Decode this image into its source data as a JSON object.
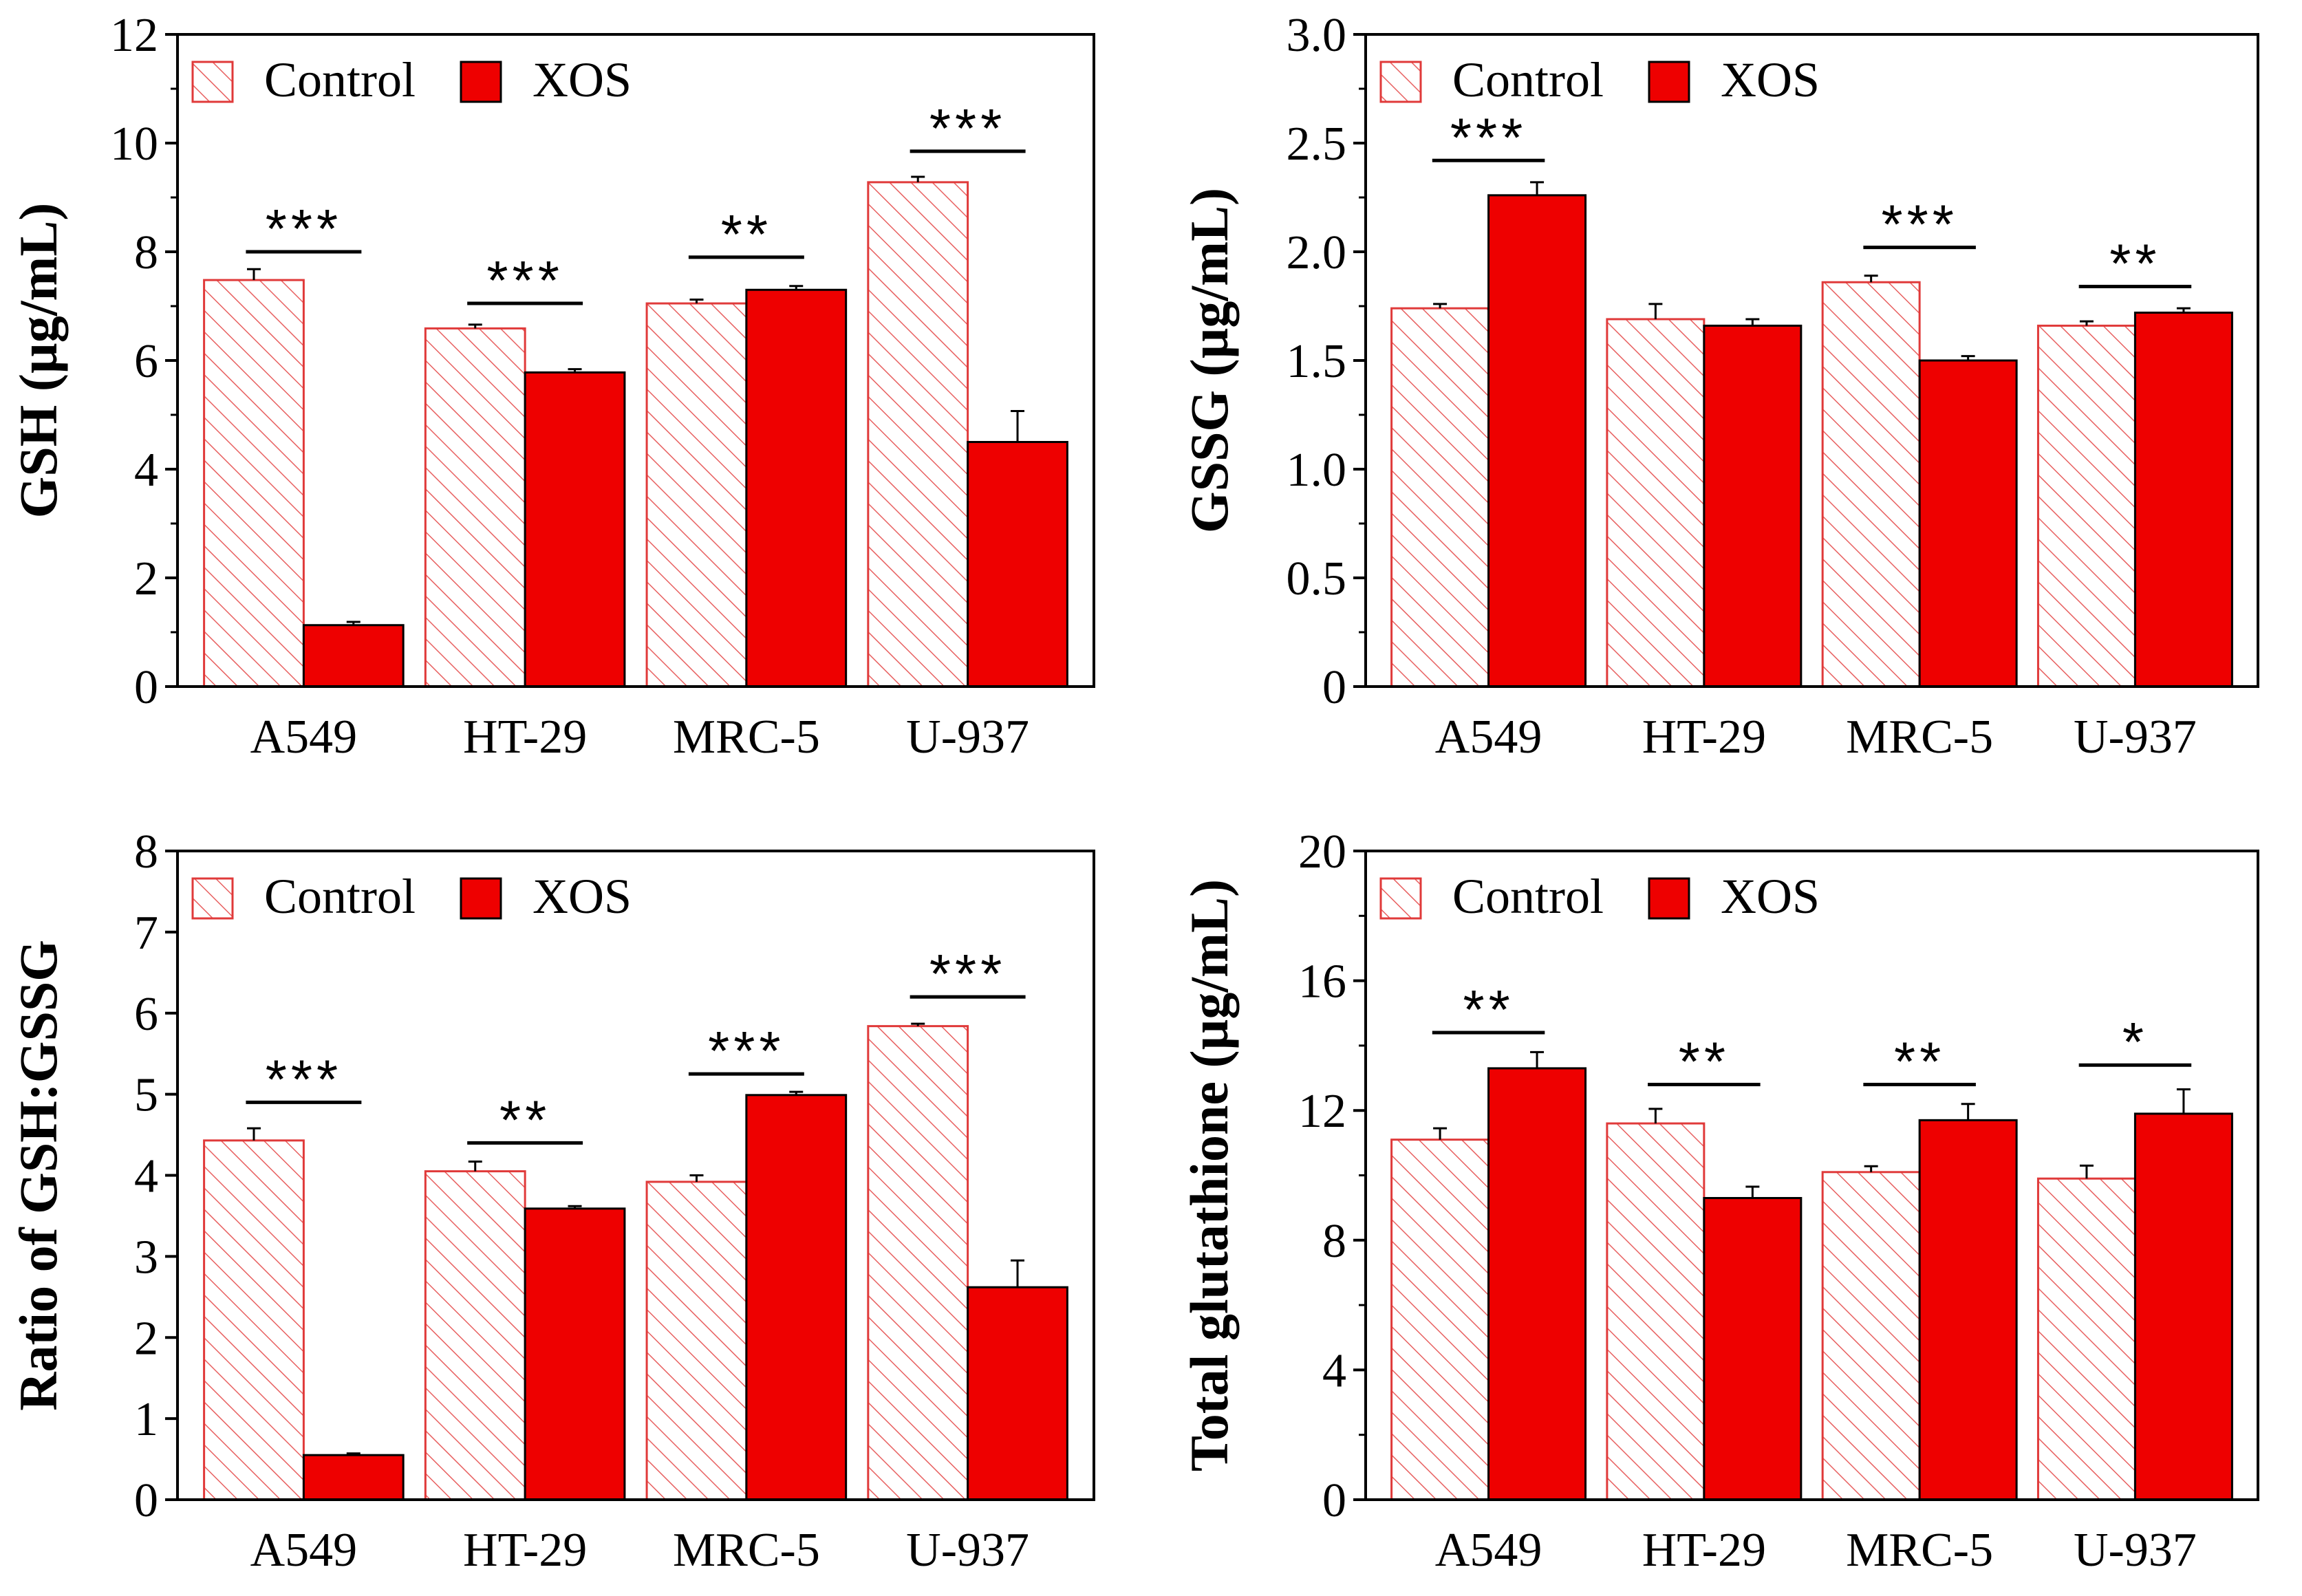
{
  "colors": {
    "control_stroke": "#e03a3a",
    "control_hatch": "#e86060",
    "control_fill": "#ffffff",
    "xos_fill": "#ee0000",
    "frame": "#000000"
  },
  "chart_data": [
    {
      "type": "bar",
      "ylabel": "GSH (µg/mL)",
      "categories": [
        "A549",
        "HT-29",
        "MRC-5",
        "U-937"
      ],
      "ylim": [
        0,
        12
      ],
      "yticks": [
        0,
        2,
        4,
        6,
        8,
        10,
        12
      ],
      "yminor": 1,
      "legend": {
        "position": "top-left",
        "entries": [
          "Control",
          "XOS"
        ]
      },
      "series": [
        {
          "name": "Control",
          "values": [
            7.48,
            6.59,
            7.05,
            9.28
          ],
          "errors": [
            0.2,
            0.07,
            0.07,
            0.1
          ]
        },
        {
          "name": "XOS",
          "values": [
            1.13,
            5.78,
            7.3,
            4.5
          ],
          "errors": [
            0.06,
            0.06,
            0.07,
            0.57
          ]
        }
      ],
      "significance": [
        {
          "label": "***",
          "y": 8.0
        },
        {
          "label": "***",
          "y": 7.05
        },
        {
          "label": "**",
          "y": 7.9
        },
        {
          "label": "***",
          "y": 9.85
        }
      ]
    },
    {
      "type": "bar",
      "ylabel": "GSSG (µg/mL)",
      "categories": [
        "A549",
        "HT-29",
        "MRC-5",
        "U-937"
      ],
      "ylim": [
        0,
        3.0
      ],
      "yticks": [
        0,
        0.5,
        1.0,
        1.5,
        2.0,
        2.5,
        3.0
      ],
      "ytick_labels": [
        "0",
        "0.5",
        "1.0",
        "1.5",
        "2.0",
        "2.5",
        "3.0"
      ],
      "yminor": 0.25,
      "legend": {
        "position": "top-left",
        "entries": [
          "Control",
          "XOS"
        ]
      },
      "series": [
        {
          "name": "Control",
          "values": [
            1.74,
            1.69,
            1.86,
            1.66
          ],
          "errors": [
            0.02,
            0.07,
            0.03,
            0.02
          ]
        },
        {
          "name": "XOS",
          "values": [
            2.26,
            1.66,
            1.5,
            1.72
          ],
          "errors": [
            0.06,
            0.03,
            0.02,
            0.02
          ]
        }
      ],
      "significance": [
        {
          "label": "***",
          "y": 2.42
        },
        null,
        {
          "label": "***",
          "y": 2.02
        },
        {
          "label": "**",
          "y": 1.84
        }
      ]
    },
    {
      "type": "bar",
      "ylabel": "Ratio of GSH:GSSG",
      "categories": [
        "A549",
        "HT-29",
        "MRC-5",
        "U-937"
      ],
      "ylim": [
        0,
        8
      ],
      "yticks": [
        0,
        1,
        2,
        3,
        4,
        5,
        6,
        7,
        8
      ],
      "legend": {
        "position": "top-left",
        "entries": [
          "Control",
          "XOS"
        ]
      },
      "series": [
        {
          "name": "Control",
          "values": [
            4.43,
            4.05,
            3.92,
            5.84
          ],
          "errors": [
            0.15,
            0.12,
            0.08,
            0.03
          ]
        },
        {
          "name": "XOS",
          "values": [
            0.55,
            3.59,
            4.99,
            2.62
          ],
          "errors": [
            0.02,
            0.03,
            0.04,
            0.33
          ]
        }
      ],
      "significance": [
        {
          "label": "***",
          "y": 4.9
        },
        {
          "label": "**",
          "y": 4.4
        },
        {
          "label": "***",
          "y": 5.25
        },
        {
          "label": "***",
          "y": 6.2
        }
      ]
    },
    {
      "type": "bar",
      "ylabel": "Total glutathione (µg/mL)",
      "categories": [
        "A549",
        "HT-29",
        "MRC-5",
        "U-937"
      ],
      "ylim": [
        0,
        20
      ],
      "yticks": [
        0,
        4,
        8,
        12,
        16,
        20
      ],
      "yminor": 2,
      "legend": {
        "position": "top-left",
        "entries": [
          "Control",
          "XOS"
        ]
      },
      "series": [
        {
          "name": "Control",
          "values": [
            11.1,
            11.6,
            10.1,
            9.9
          ],
          "errors": [
            0.35,
            0.45,
            0.18,
            0.4
          ]
        },
        {
          "name": "XOS",
          "values": [
            13.3,
            9.3,
            11.7,
            11.9
          ],
          "errors": [
            0.5,
            0.35,
            0.5,
            0.75
          ]
        }
      ],
      "significance": [
        {
          "label": "**",
          "y": 14.4
        },
        {
          "label": "**",
          "y": 12.8
        },
        {
          "label": "**",
          "y": 12.8
        },
        {
          "label": "*",
          "y": 13.4
        }
      ]
    }
  ]
}
